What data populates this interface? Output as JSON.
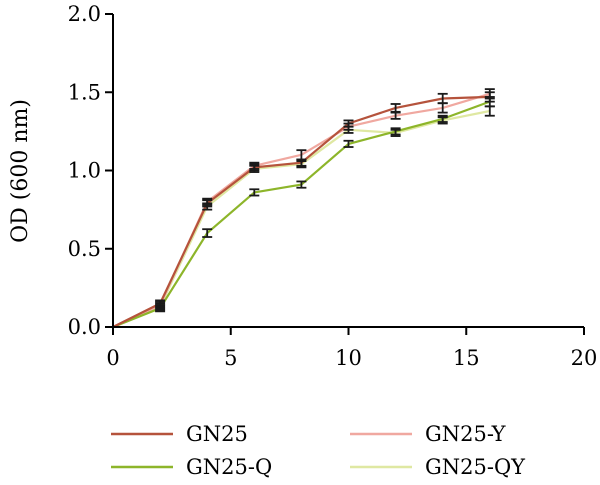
{
  "chart_data": {
    "type": "line",
    "title": "",
    "xlabel": "",
    "ylabel": "OD (600 nm)",
    "xlim": [
      0,
      20
    ],
    "ylim": [
      0,
      2.0
    ],
    "xticks": [
      0,
      5,
      10,
      15,
      20
    ],
    "yticks": [
      0.0,
      0.5,
      1.0,
      1.5,
      2.0
    ],
    "xtick_labels": [
      "0",
      "5",
      "10",
      "15",
      "20"
    ],
    "ytick_labels": [
      "0.0",
      "0.5",
      "1.0",
      "1.5",
      "2.0"
    ],
    "grid": false,
    "legend_position": "bottom",
    "x": [
      0,
      2,
      4,
      6,
      8,
      10,
      12,
      14,
      16
    ],
    "series": [
      {
        "name": "GN25",
        "color": "#b5533c",
        "values": [
          0.0,
          0.15,
          0.79,
          1.02,
          1.05,
          1.3,
          1.4,
          1.46,
          1.47
        ],
        "errors": [
          0,
          0.02,
          0.02,
          0.02,
          0.02,
          0.02,
          0.025,
          0.03,
          0.03
        ]
      },
      {
        "name": "GN25-Y",
        "color": "#f0a8a0",
        "values": [
          0.0,
          0.14,
          0.8,
          1.03,
          1.1,
          1.28,
          1.35,
          1.4,
          1.49
        ],
        "errors": [
          0,
          0.02,
          0.02,
          0.02,
          0.03,
          0.02,
          0.02,
          0.03,
          0.03
        ]
      },
      {
        "name": "GN25-Q",
        "color": "#8db52a",
        "values": [
          0.0,
          0.12,
          0.6,
          0.86,
          0.91,
          1.17,
          1.25,
          1.33,
          1.44
        ],
        "errors": [
          0,
          0.02,
          0.025,
          0.02,
          0.02,
          0.02,
          0.02,
          0.02,
          0.03
        ]
      },
      {
        "name": "GN25-QY",
        "color": "#dfe8a2",
        "values": [
          0.0,
          0.13,
          0.77,
          1.01,
          1.04,
          1.26,
          1.24,
          1.32,
          1.38
        ],
        "errors": [
          0,
          0.02,
          0.02,
          0.02,
          0.02,
          0.02,
          0.02,
          0.02,
          0.03
        ]
      }
    ]
  }
}
